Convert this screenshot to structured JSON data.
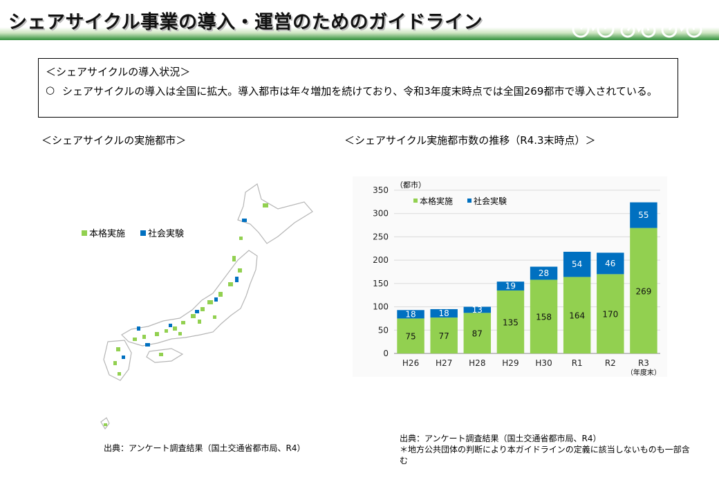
{
  "header": {
    "title": "シェアサイクル事業の導入・運営のためのガイドライン"
  },
  "summary": {
    "heading": "＜シェアサイクルの導入状況＞",
    "bullet": "○",
    "text": "シェアサイクルの導入は全国に拡大。導入都市は年々増加を続けており、令和3年度末時点では全国269都市で導入されている。"
  },
  "map": {
    "title": "＜シェアサイクルの実施都市＞",
    "legend": [
      {
        "label": "本格実施",
        "color": "#92d050"
      },
      {
        "label": "社会実験",
        "color": "#0070c0"
      }
    ],
    "source": "出典：アンケート調査結果（国土交通省都市局、R4）"
  },
  "chart_section": {
    "title": "＜シェアサイクル実施都市数の推移（R4.3末時点）＞",
    "source_line1": "出典：アンケート調査結果（国土交通省都市局、R4）",
    "source_line2": "＊地方公共団体の判断により本ガイドラインの定義に該当しないものも一部含む"
  },
  "colors": {
    "full": "#92d050",
    "trial": "#0070c0",
    "header_green": "#2f8f3a"
  },
  "chart_data": {
    "type": "bar",
    "stacked": true,
    "categories": [
      "H26",
      "H27",
      "H28",
      "H29",
      "H30",
      "R1",
      "R2",
      "R3"
    ],
    "x_note": "（年度末）",
    "series": [
      {
        "name": "本格実施",
        "values": [
          75,
          77,
          87,
          135,
          158,
          164,
          170,
          269
        ]
      },
      {
        "name": "社会実験",
        "values": [
          18,
          18,
          13,
          19,
          28,
          54,
          46,
          55
        ]
      }
    ],
    "ylabel": "（都市）",
    "yticks": [
      0,
      50,
      100,
      150,
      200,
      250,
      300,
      350
    ],
    "ylim": [
      0,
      350
    ],
    "legend_position": "top-left"
  }
}
